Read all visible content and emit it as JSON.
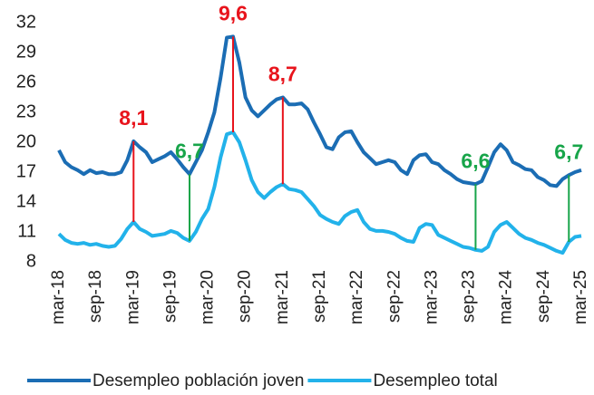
{
  "chart_data": {
    "type": "line",
    "categories": [
      "mar-18",
      null,
      null,
      null,
      null,
      null,
      "sep-18",
      null,
      null,
      null,
      null,
      null,
      "mar-19",
      null,
      null,
      null,
      null,
      null,
      "sep-19",
      null,
      null,
      null,
      null,
      null,
      "mar-20",
      null,
      null,
      null,
      null,
      null,
      "sep-20",
      null,
      null,
      null,
      null,
      null,
      "mar-21",
      null,
      null,
      null,
      null,
      null,
      "sep-21",
      null,
      null,
      null,
      null,
      null,
      "mar-22",
      null,
      null,
      null,
      null,
      null,
      "sep-22",
      null,
      null,
      null,
      null,
      null,
      "mar-23",
      null,
      null,
      null,
      null,
      null,
      "sep-23",
      null,
      null,
      null,
      null,
      null,
      "mar-24",
      null,
      null,
      null,
      null,
      null,
      "sep-24",
      null,
      null,
      null,
      null,
      null,
      "mar-25"
    ],
    "series": [
      {
        "name": "Desempleo población joven",
        "color": "#1b6db4",
        "values": [
          19.2,
          18,
          17.5,
          17.2,
          16.8,
          17.2,
          16.9,
          17,
          16.8,
          16.8,
          17,
          18.2,
          20.1,
          19.5,
          19,
          18,
          18.3,
          18.6,
          19,
          18.3,
          17.5,
          16.8,
          18,
          19.2,
          21,
          23,
          26.5,
          30.5,
          30.6,
          28,
          24.5,
          23.2,
          22.6,
          23.2,
          23.8,
          24.3,
          24.5,
          23.8,
          23.8,
          23.9,
          23.3,
          22,
          20.8,
          19.5,
          19.3,
          20.5,
          21,
          21.1,
          20,
          19,
          18.4,
          17.8,
          18,
          18.2,
          18,
          17.2,
          16.8,
          18.2,
          18.7,
          18.8,
          18,
          17.8,
          17.2,
          16.8,
          16.3,
          16,
          15.9,
          15.8,
          16.1,
          17.5,
          19,
          19.8,
          19.2,
          18,
          17.7,
          17.3,
          17.2,
          16.5,
          16.2,
          15.7,
          15.6,
          16.3,
          16.7,
          17,
          17.2
        ]
      },
      {
        "name": "Desempleo total",
        "color": "#22b2ea",
        "values": [
          10.8,
          10.2,
          9.9,
          9.8,
          9.9,
          9.7,
          9.8,
          9.6,
          9.5,
          9.6,
          10.3,
          11.3,
          12,
          11.3,
          11,
          10.6,
          10.7,
          10.8,
          11.1,
          10.9,
          10.4,
          10.1,
          11,
          12.3,
          13.3,
          15.5,
          18.5,
          20.8,
          21,
          20,
          18.2,
          16.2,
          15,
          14.4,
          15,
          15.5,
          15.8,
          15.3,
          15.2,
          15,
          14.3,
          13.6,
          12.7,
          12.3,
          12,
          11.8,
          12.6,
          13,
          13.2,
          12,
          11.3,
          11.1,
          11.1,
          11,
          10.8,
          10.4,
          10.1,
          10,
          11.4,
          11.8,
          11.7,
          10.7,
          10.4,
          10.1,
          9.8,
          9.5,
          9.4,
          9.2,
          9.1,
          9.5,
          11,
          11.7,
          12,
          11.4,
          10.8,
          10.4,
          10.2,
          9.9,
          9.7,
          9.4,
          9.1,
          8.9,
          10,
          10.5,
          10.6
        ]
      }
    ],
    "annotations": [
      {
        "x": 12,
        "value": 8.1,
        "label": "8,1",
        "color": "#e8141c"
      },
      {
        "x": 21,
        "value": 6.7,
        "label": "6,7",
        "color": "#18a54a"
      },
      {
        "x": 28,
        "value": 9.6,
        "label": "9,6",
        "color": "#e8141c"
      },
      {
        "x": 36,
        "value": 8.7,
        "label": "8,7",
        "color": "#e8141c"
      },
      {
        "x": 67,
        "value": 6.6,
        "label": "6,6",
        "color": "#18a54a"
      },
      {
        "x": 82,
        "value": 6.7,
        "label": "6,7",
        "color": "#18a54a"
      }
    ],
    "ylim": [
      8,
      32
    ],
    "yticks": [
      8,
      11,
      14,
      17,
      20,
      23,
      26,
      29,
      32
    ],
    "grid": false,
    "legend": "bottom"
  }
}
